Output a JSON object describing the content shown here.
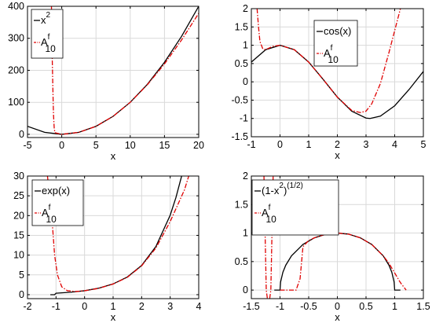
{
  "chart_data": [
    {
      "type": "line",
      "xlabel": "x",
      "xlim": [
        -5,
        20
      ],
      "ylim": [
        -10,
        400
      ],
      "xticks": [
        -5,
        0,
        5,
        10,
        15,
        20
      ],
      "yticks": [
        0,
        100,
        200,
        300,
        400
      ],
      "grid": true,
      "legend_position": "top-left",
      "series": [
        {
          "name": "x^2",
          "name_main": "x",
          "name_sup": "2",
          "color": "#000000",
          "style": "solid",
          "x": [
            -5,
            -2.5,
            0,
            2.5,
            5,
            7.5,
            10,
            12.5,
            15,
            17.5,
            20
          ],
          "y": [
            25,
            6.25,
            0,
            6.25,
            25,
            56.25,
            100,
            156.25,
            225,
            306.25,
            400
          ]
        },
        {
          "name": "A^f_10",
          "name_main": "A",
          "name_sup": "f",
          "name_sub": "10",
          "color": "#e00000",
          "style": "dashdot",
          "x": [
            -1.5,
            -1.4,
            -1.3,
            -1.25,
            -1.2,
            -1.1,
            -1,
            0,
            2.5,
            5,
            7.5,
            10,
            12.5,
            15,
            17.5,
            20
          ],
          "y": [
            400,
            250,
            150,
            100,
            60,
            20,
            5,
            0,
            6.25,
            25,
            56.3,
            100,
            155,
            220,
            295,
            378
          ]
        }
      ]
    },
    {
      "type": "line",
      "xlabel": "x",
      "xlim": [
        -1,
        5
      ],
      "ylim": [
        -1.5,
        2
      ],
      "xticks": [
        -1,
        0,
        1,
        2,
        3,
        4,
        5
      ],
      "yticks": [
        -1.5,
        -1,
        -0.5,
        0,
        0.5,
        1,
        1.5,
        2
      ],
      "grid": true,
      "legend_position": "top-right",
      "series": [
        {
          "name": "cos(x)",
          "name_main": "cos(x)",
          "color": "#000000",
          "style": "solid",
          "x": [
            -1,
            -0.5,
            0,
            0.5,
            1,
            1.5,
            2,
            2.5,
            3,
            3.1416,
            3.5,
            4,
            4.5,
            5
          ],
          "y": [
            0.54,
            0.878,
            1,
            0.878,
            0.54,
            0.071,
            -0.416,
            -0.801,
            -0.99,
            -1,
            -0.936,
            -0.654,
            -0.211,
            0.284
          ]
        },
        {
          "name": "A^f_10",
          "name_main": "A",
          "name_sup": "f",
          "name_sub": "10",
          "color": "#e00000",
          "style": "dashdot",
          "x": [
            -0.8,
            -0.75,
            -0.7,
            -0.6,
            -0.5,
            -0.25,
            0,
            0.5,
            1,
            1.5,
            2,
            2.5,
            2.8,
            3,
            3.2,
            3.5,
            3.8,
            4,
            4.2
          ],
          "y": [
            2,
            1.5,
            1.1,
            0.9,
            0.88,
            0.97,
            1,
            0.878,
            0.54,
            0.07,
            -0.42,
            -0.78,
            -0.84,
            -0.8,
            -0.6,
            -0.05,
            0.8,
            1.4,
            2
          ]
        }
      ]
    },
    {
      "type": "line",
      "xlabel": "x",
      "xlim": [
        -2,
        4
      ],
      "ylim": [
        -1,
        30
      ],
      "xticks": [
        -2,
        -1,
        0,
        1,
        2,
        3,
        4
      ],
      "yticks": [
        0,
        5,
        10,
        15,
        20,
        25,
        30
      ],
      "grid": true,
      "legend_position": "top-left",
      "series": [
        {
          "name": "exp(x)",
          "name_main": "exp(x)",
          "color": "#000000",
          "style": "solid",
          "x": [
            -1.2,
            -1.05,
            -1,
            -0.5,
            0,
            0.5,
            1,
            1.5,
            2,
            2.5,
            3,
            3.2,
            3.4
          ],
          "y": [
            0,
            0,
            0.37,
            0.61,
            1,
            1.65,
            2.72,
            4.48,
            7.39,
            12.18,
            20.09,
            24.53,
            29.96
          ]
        },
        {
          "name": "A^f_10",
          "name_main": "A",
          "name_sup": "f",
          "name_sub": "10",
          "color": "#e00000",
          "style": "dashdot",
          "x": [
            -1.3,
            -1.15,
            -1.05,
            -0.95,
            -0.8,
            -0.6,
            -0.3,
            0,
            0.5,
            1,
            1.5,
            2,
            2.5,
            3,
            3.5,
            3.65
          ],
          "y": [
            30,
            20,
            10,
            5,
            2,
            1,
            0.8,
            1,
            1.6,
            2.7,
            4.4,
            7.3,
            11.8,
            18.5,
            26.5,
            30
          ]
        }
      ]
    },
    {
      "type": "line",
      "xlabel": "x",
      "xlim": [
        -1.5,
        1.5
      ],
      "ylim": [
        -0.15,
        2
      ],
      "xticks": [
        -1.5,
        -1,
        -0.5,
        0,
        0.5,
        1,
        1.5
      ],
      "yticks": [
        0,
        0.5,
        1,
        1.5,
        2
      ],
      "grid": true,
      "legend_position": "top-left",
      "series": [
        {
          "name": "(1-x^2)^(1/2)",
          "name_main": "(1-x",
          "name_sup": "2",
          "name_main2": ")",
          "name_sup2": "(1/2)",
          "color": "#000000",
          "style": "solid",
          "x": [
            -1.1,
            -1,
            -0.99,
            -0.95,
            -0.9,
            -0.8,
            -0.6,
            -0.4,
            -0.2,
            0,
            0.2,
            0.4,
            0.6,
            0.8,
            0.9,
            0.95,
            0.99,
            1,
            1.1
          ],
          "y": [
            0,
            0,
            0.141,
            0.312,
            0.436,
            0.6,
            0.8,
            0.917,
            0.98,
            1,
            0.98,
            0.917,
            0.8,
            0.6,
            0.436,
            0.312,
            0.141,
            0,
            0
          ]
        },
        {
          "name": "A^f_10",
          "name_main": "A",
          "name_sup": "f",
          "name_sub": "10",
          "color": "#e00000",
          "style": "dashdot",
          "x": [
            -1.0,
            -0.9,
            -0.8,
            -0.72,
            -0.65,
            -0.6,
            -0.5,
            -0.4,
            -0.2,
            0,
            0.2,
            0.4,
            0.6,
            0.8,
            0.9,
            1.0,
            1.1,
            1.2
          ],
          "y": [
            0,
            0,
            0,
            0,
            0.2,
            0.76,
            0.87,
            0.917,
            0.98,
            1,
            0.98,
            0.917,
            0.8,
            0.6,
            0.47,
            0.3,
            0.13,
            0
          ]
        },
        {
          "name": "A^f_10 (left branches)",
          "legend": false,
          "color": "#e00000",
          "style": "dashdot",
          "segments": [
            {
              "x": [
                -1.28,
                -1.26,
                -1.24,
                -1.22
              ],
              "y": [
                2,
                1,
                0,
                -0.15
              ]
            },
            {
              "x": [
                -1.18,
                -1.16,
                -1.14,
                -1.12
              ],
              "y": [
                -0.15,
                0,
                1,
                2
              ]
            }
          ]
        }
      ]
    }
  ]
}
